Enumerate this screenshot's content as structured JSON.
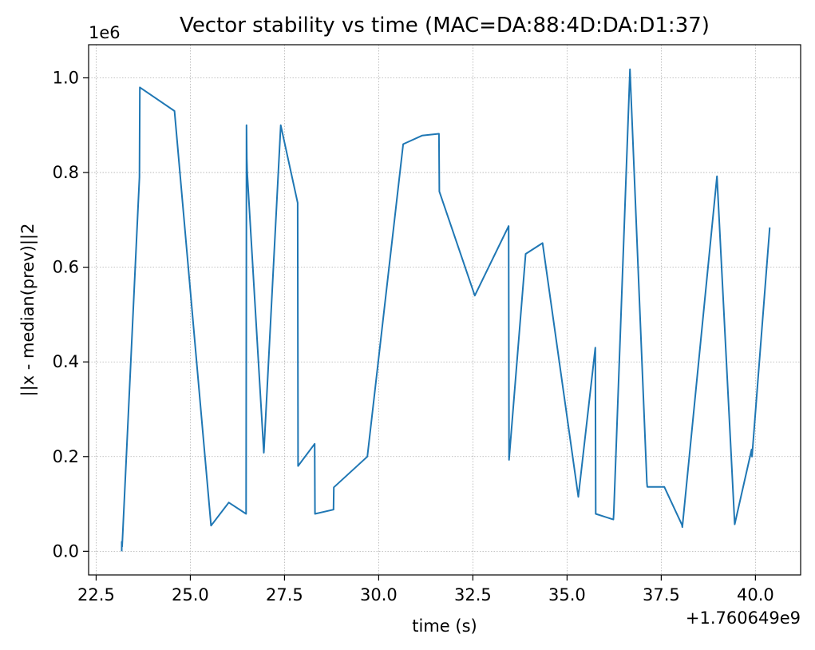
{
  "chart_data": {
    "type": "line",
    "title": "Vector stability vs time (MAC=DA:88:4D:DA:D1:37)",
    "xlabel": "time (s)",
    "ylabel": "||x - median(prev)||2",
    "x_offset_label": "+1.760649e9",
    "y_scale_label": "1e6",
    "xlim": [
      22.3,
      41.2
    ],
    "ylim": [
      -0.05,
      1.07
    ],
    "x_ticks": [
      22.5,
      25.0,
      27.5,
      30.0,
      32.5,
      35.0,
      37.5,
      40.0
    ],
    "x_tick_labels": [
      "22.5",
      "25.0",
      "27.5",
      "30.0",
      "32.5",
      "35.0",
      "37.5",
      "40.0"
    ],
    "y_ticks": [
      0.0,
      0.2,
      0.4,
      0.6,
      0.8,
      1.0
    ],
    "y_tick_labels": [
      "0.0",
      "0.2",
      "0.4",
      "0.6",
      "0.8",
      "1.0"
    ],
    "grid": true,
    "line_color": "#1f77b4",
    "series": [
      {
        "x": [
          23.18,
          23.18,
          23.19,
          23.65,
          23.66,
          24.58,
          25.55,
          26.02,
          26.48,
          26.49,
          26.5,
          26.51,
          26.95,
          26.96,
          27.4,
          27.85,
          27.86,
          28.3,
          28.31,
          28.8,
          28.81,
          29.7,
          30.65,
          31.15,
          31.6,
          31.61,
          32.55,
          33.45,
          33.46,
          33.9,
          34.35,
          35.3,
          35.75,
          35.76,
          36.23,
          36.24,
          36.67,
          37.12,
          37.13,
          37.58,
          38.05,
          38.06,
          38.98,
          39.45,
          39.9,
          39.91,
          40.38
        ],
        "y": [
          0.0,
          0.02,
          0.01,
          0.79,
          0.98,
          0.93,
          0.054,
          0.103,
          0.079,
          0.9,
          0.83,
          0.8,
          0.208,
          0.22,
          0.9,
          0.736,
          0.18,
          0.227,
          0.079,
          0.088,
          0.135,
          0.2,
          0.86,
          0.878,
          0.882,
          0.76,
          0.54,
          0.687,
          0.193,
          0.628,
          0.651,
          0.115,
          0.43,
          0.079,
          0.067,
          0.08,
          1.018,
          0.145,
          0.136,
          0.136,
          0.056,
          0.051,
          0.792,
          0.057,
          0.215,
          0.2,
          0.684
        ]
      }
    ]
  }
}
